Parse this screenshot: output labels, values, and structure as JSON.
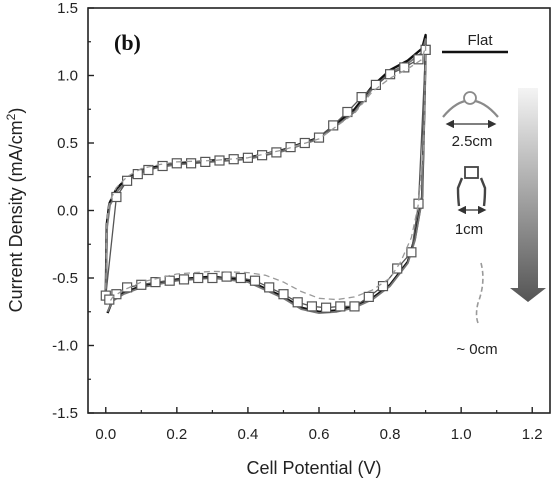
{
  "chart_data": {
    "type": "line",
    "panel_label": "(b)",
    "xlabel": "Cell Potential (V)",
    "ylabel_main": "Current Density (mA/cm",
    "ylabel_sup": "2",
    "ylabel_end": ")",
    "xlim": [
      -0.05,
      1.25
    ],
    "ylim": [
      -1.5,
      1.5
    ],
    "x_ticks": [
      0.0,
      0.2,
      0.4,
      0.6,
      0.8,
      1.0,
      1.2
    ],
    "x_tick_labels": [
      "0.0",
      "0.2",
      "0.4",
      "0.6",
      "0.8",
      "1.0",
      "1.2"
    ],
    "y_ticks": [
      -1.5,
      -1.0,
      -0.5,
      0.0,
      0.5,
      1.0,
      1.5
    ],
    "y_tick_labels": [
      "-1.5",
      "-1.0",
      "-0.5",
      "0.0",
      "0.5",
      "1.0",
      "1.5"
    ],
    "grid": false,
    "legend": {
      "title": "Flat",
      "bend_labels": [
        "2.5cm",
        "1cm",
        "~ 0cm"
      ],
      "arrow_direction": "down"
    },
    "series": [
      {
        "name": "Flat",
        "color": "#111111",
        "style": "solid",
        "anodic": [
          [
            0.0,
            -0.6
          ],
          [
            0.003,
            -0.1
          ],
          [
            0.01,
            0.05
          ],
          [
            0.03,
            0.16
          ],
          [
            0.06,
            0.24
          ],
          [
            0.1,
            0.3
          ],
          [
            0.15,
            0.33
          ],
          [
            0.2,
            0.35
          ],
          [
            0.3,
            0.37
          ],
          [
            0.4,
            0.39
          ],
          [
            0.5,
            0.45
          ],
          [
            0.6,
            0.54
          ],
          [
            0.7,
            0.75
          ],
          [
            0.75,
            0.92
          ],
          [
            0.8,
            1.04
          ],
          [
            0.85,
            1.11
          ],
          [
            0.89,
            1.2
          ],
          [
            0.9,
            1.3
          ]
        ],
        "cathodic": [
          [
            0.9,
            1.2
          ],
          [
            0.897,
            0.8
          ],
          [
            0.89,
            0.1
          ],
          [
            0.87,
            -0.2
          ],
          [
            0.85,
            -0.38
          ],
          [
            0.8,
            -0.55
          ],
          [
            0.75,
            -0.65
          ],
          [
            0.7,
            -0.71
          ],
          [
            0.65,
            -0.74
          ],
          [
            0.6,
            -0.75
          ],
          [
            0.55,
            -0.72
          ],
          [
            0.5,
            -0.64
          ],
          [
            0.4,
            -0.52
          ],
          [
            0.3,
            -0.49
          ],
          [
            0.2,
            -0.51
          ],
          [
            0.1,
            -0.56
          ],
          [
            0.05,
            -0.61
          ],
          [
            0.02,
            -0.66
          ],
          [
            0.005,
            -0.76
          ]
        ]
      },
      {
        "name": "2.5cm",
        "color": "#777777",
        "style": "solid",
        "anodic": [
          [
            0.0,
            -0.62
          ],
          [
            0.004,
            -0.12
          ],
          [
            0.012,
            0.04
          ],
          [
            0.035,
            0.15
          ],
          [
            0.065,
            0.23
          ],
          [
            0.1,
            0.29
          ],
          [
            0.15,
            0.32
          ],
          [
            0.2,
            0.34
          ],
          [
            0.3,
            0.36
          ],
          [
            0.4,
            0.38
          ],
          [
            0.5,
            0.44
          ],
          [
            0.6,
            0.53
          ],
          [
            0.7,
            0.73
          ],
          [
            0.75,
            0.9
          ],
          [
            0.8,
            1.02
          ],
          [
            0.85,
            1.09
          ],
          [
            0.89,
            1.17
          ],
          [
            0.9,
            1.27
          ]
        ],
        "cathodic": [
          [
            0.9,
            1.18
          ],
          [
            0.897,
            0.78
          ],
          [
            0.89,
            0.08
          ],
          [
            0.87,
            -0.22
          ],
          [
            0.85,
            -0.39
          ],
          [
            0.8,
            -0.56
          ],
          [
            0.75,
            -0.66
          ],
          [
            0.7,
            -0.72
          ],
          [
            0.65,
            -0.75
          ],
          [
            0.6,
            -0.76
          ],
          [
            0.55,
            -0.73
          ],
          [
            0.5,
            -0.65
          ],
          [
            0.4,
            -0.53
          ],
          [
            0.3,
            -0.5
          ],
          [
            0.2,
            -0.52
          ],
          [
            0.1,
            -0.57
          ],
          [
            0.05,
            -0.62
          ],
          [
            0.02,
            -0.67
          ],
          [
            0.005,
            -0.75
          ]
        ]
      },
      {
        "name": "1cm",
        "color": "#555555",
        "style": "markers",
        "anodic": [
          [
            0.0,
            -0.63
          ],
          [
            0.03,
            0.1
          ],
          [
            0.06,
            0.22
          ],
          [
            0.09,
            0.27
          ],
          [
            0.12,
            0.3
          ],
          [
            0.16,
            0.33
          ],
          [
            0.2,
            0.35
          ],
          [
            0.24,
            0.35
          ],
          [
            0.28,
            0.36
          ],
          [
            0.32,
            0.37
          ],
          [
            0.36,
            0.38
          ],
          [
            0.4,
            0.39
          ],
          [
            0.44,
            0.41
          ],
          [
            0.48,
            0.43
          ],
          [
            0.52,
            0.47
          ],
          [
            0.56,
            0.5
          ],
          [
            0.6,
            0.54
          ],
          [
            0.64,
            0.63
          ],
          [
            0.68,
            0.73
          ],
          [
            0.72,
            0.84
          ],
          [
            0.76,
            0.93
          ],
          [
            0.8,
            1.01
          ],
          [
            0.84,
            1.06
          ],
          [
            0.88,
            1.12
          ],
          [
            0.9,
            1.19
          ]
        ],
        "cathodic": [
          [
            0.9,
            1.19
          ],
          [
            0.88,
            0.05
          ],
          [
            0.86,
            -0.31
          ],
          [
            0.82,
            -0.43
          ],
          [
            0.78,
            -0.56
          ],
          [
            0.74,
            -0.64
          ],
          [
            0.7,
            -0.71
          ],
          [
            0.66,
            -0.71
          ],
          [
            0.62,
            -0.72
          ],
          [
            0.58,
            -0.71
          ],
          [
            0.54,
            -0.68
          ],
          [
            0.5,
            -0.62
          ],
          [
            0.46,
            -0.57
          ],
          [
            0.42,
            -0.52
          ],
          [
            0.38,
            -0.5
          ],
          [
            0.34,
            -0.49
          ],
          [
            0.3,
            -0.5
          ],
          [
            0.26,
            -0.5
          ],
          [
            0.22,
            -0.51
          ],
          [
            0.18,
            -0.52
          ],
          [
            0.14,
            -0.53
          ],
          [
            0.1,
            -0.55
          ],
          [
            0.06,
            -0.57
          ],
          [
            0.03,
            -0.62
          ],
          [
            0.01,
            -0.66
          ]
        ]
      },
      {
        "name": "~ 0cm",
        "color": "#9a9a9a",
        "style": "dashed",
        "anodic": [
          [
            0.0,
            -0.58
          ],
          [
            0.003,
            -0.08
          ],
          [
            0.01,
            0.06
          ],
          [
            0.03,
            0.17
          ],
          [
            0.06,
            0.25
          ],
          [
            0.1,
            0.31
          ],
          [
            0.15,
            0.34
          ],
          [
            0.2,
            0.36
          ],
          [
            0.3,
            0.37
          ],
          [
            0.4,
            0.39
          ],
          [
            0.5,
            0.45
          ],
          [
            0.6,
            0.53
          ],
          [
            0.7,
            0.72
          ],
          [
            0.75,
            0.88
          ],
          [
            0.8,
            0.98
          ],
          [
            0.85,
            1.05
          ],
          [
            0.89,
            1.12
          ],
          [
            0.9,
            1.22
          ]
        ],
        "cathodic": [
          [
            0.9,
            1.12
          ],
          [
            0.895,
            0.5
          ],
          [
            0.88,
            0.05
          ],
          [
            0.86,
            -0.2
          ],
          [
            0.83,
            -0.38
          ],
          [
            0.8,
            -0.5
          ],
          [
            0.75,
            -0.59
          ],
          [
            0.7,
            -0.64
          ],
          [
            0.65,
            -0.66
          ],
          [
            0.6,
            -0.65
          ],
          [
            0.55,
            -0.6
          ],
          [
            0.5,
            -0.53
          ],
          [
            0.45,
            -0.48
          ],
          [
            0.4,
            -0.46
          ],
          [
            0.3,
            -0.45
          ],
          [
            0.2,
            -0.47
          ],
          [
            0.1,
            -0.53
          ],
          [
            0.05,
            -0.59
          ],
          [
            0.02,
            -0.64
          ],
          [
            0.005,
            -0.7
          ]
        ]
      }
    ]
  }
}
